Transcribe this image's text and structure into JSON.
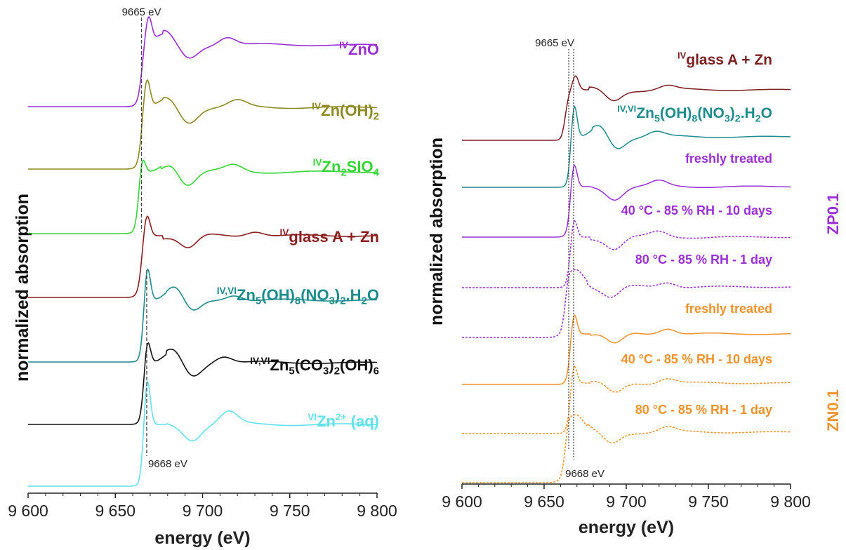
{
  "chart_data": [
    {
      "type": "line",
      "xlabel": "energy (eV)",
      "ylabel": "normalized absorption",
      "xlim": [
        9600,
        9800
      ],
      "x_ticks": [
        9600,
        9650,
        9700,
        9750,
        9800
      ],
      "x_tick_labels": [
        "9 600",
        "9 650",
        "9 700",
        "9 750",
        "9 800"
      ],
      "reference_lines": [
        {
          "x": 9665,
          "label": "9665 eV"
        },
        {
          "x": 9668,
          "label": "9668 eV"
        }
      ],
      "series": [
        {
          "name": "ZnO",
          "sup": "IV",
          "sub": "",
          "color": "#9b2fd6",
          "edge": 9665,
          "peaks": [
            [
              9669,
              0.45
            ],
            [
              9678,
              0.18
            ],
            [
              9714,
              0.14
            ]
          ],
          "stack": 1
        },
        {
          "name": "Zn(OH)2",
          "sup": "IV",
          "sub": "2",
          "color": "#8e8a23",
          "edge": 9665,
          "peaks": [
            [
              9668,
              0.5
            ],
            [
              9680,
              0.15
            ],
            [
              9720,
              0.1
            ]
          ],
          "stack": 2
        },
        {
          "name": "Zn2SIO4",
          "sup": "IV",
          "sub": "2,4",
          "color": "#33d633",
          "edge": 9664,
          "peaks": [
            [
              9665,
              0.4
            ],
            [
              9682,
              0.18
            ],
            [
              9718,
              0.1
            ]
          ],
          "stack": 3
        },
        {
          "name": "glass A + Zn",
          "sup": "IV",
          "sub": "",
          "color": "#8b1f1f",
          "edge": 9665,
          "peaks": [
            [
              9668,
              0.38
            ],
            [
              9730,
              0.08
            ]
          ],
          "stack": 4
        },
        {
          "name": "Zn5(OH)8(NO3)2.H2O",
          "sup": "IV,VI",
          "sub": "",
          "color": "#1c8c8c",
          "edge": 9667,
          "peaks": [
            [
              9668,
              0.75
            ],
            [
              9684,
              0.2
            ],
            [
              9718,
              0.1
            ]
          ],
          "stack": 5
        },
        {
          "name": "Zn5(CO3)2(OH)6",
          "sup": "IV,VI",
          "sub": "",
          "color": "#111111",
          "edge": 9667,
          "peaks": [
            [
              9668,
              0.55
            ],
            [
              9683,
              0.18
            ],
            [
              9712,
              0.12
            ]
          ],
          "stack": 6
        },
        {
          "name": "Zn2+ (aq)",
          "sup": "VI",
          "sub": "",
          "color": "#5fe2ec",
          "edge": 9667,
          "peaks": [
            [
              9668,
              0.95
            ],
            [
              9700,
              0.0
            ],
            [
              9715,
              0.2
            ]
          ],
          "stack": 7
        }
      ]
    },
    {
      "type": "line",
      "xlabel": "energy (eV)",
      "ylabel": "normalized absorption",
      "xlim": [
        9600,
        9800
      ],
      "x_ticks": [
        9600,
        9650,
        9700,
        9750,
        9800
      ],
      "x_tick_labels": [
        "9 600",
        "9 650",
        "9 700",
        "9 750",
        "9 800"
      ],
      "reference_lines": [
        {
          "x": 9665,
          "label": "9665 eV"
        },
        {
          "x": 9668,
          "label": "9668 eV"
        }
      ],
      "groups": [
        {
          "label": "ZP0.1",
          "color": "#9b2fd6"
        },
        {
          "label": "ZN0.1",
          "color": "#f0922b"
        }
      ],
      "series": [
        {
          "name": "glass A + Zn",
          "sup": "IV",
          "color": "#7a1e1e",
          "dashed": false
        },
        {
          "name": "Zn5(OH)8(NO3)2.H2O",
          "sup": "IV,VI",
          "color": "#1c8c8c",
          "dashed": false
        },
        {
          "name": "freshly treated",
          "group": "ZP0.1",
          "color": "#9b2fd6",
          "dashed": false
        },
        {
          "name": "40 °C - 85 % RH - 10 days",
          "group": "ZP0.1",
          "color": "#9b2fd6",
          "dashed": true
        },
        {
          "name": "80 °C - 85 % RH - 1 day",
          "group": "ZP0.1",
          "color": "#9b2fd6",
          "dashed": true
        },
        {
          "name": "freshly treated",
          "group": "ZN0.1",
          "color": "#f0922b",
          "dashed": false
        },
        {
          "name": "40 °C - 85 % RH - 10 days",
          "group": "ZN0.1",
          "color": "#f0922b",
          "dashed": true
        },
        {
          "name": "80 °C - 85 % RH - 1 day",
          "group": "ZN0.1",
          "color": "#f0922b",
          "dashed": true
        }
      ]
    }
  ]
}
